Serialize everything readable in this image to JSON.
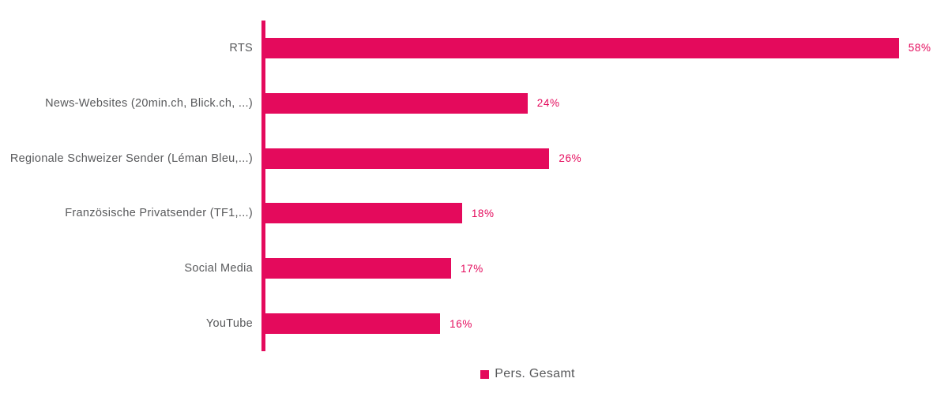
{
  "chart_data": {
    "type": "bar",
    "orientation": "horizontal",
    "title": "",
    "xlabel": "",
    "ylabel": "",
    "categories": [
      "RTS",
      "News-Websites (20min.ch, Blick.ch, ...)",
      "Regionale Schweizer Sender (Léman Bleu,...)",
      "Französische Privatsender (TF1,...)",
      "Social Media",
      "YouTube"
    ],
    "series": [
      {
        "name": "Pers. Gesamt",
        "values": [
          58,
          24,
          26,
          18,
          17,
          16
        ]
      }
    ],
    "value_suffix": "%",
    "xlim": [
      0,
      62.5
    ],
    "grid": false,
    "legend": {
      "label": "Pers. Gesamt",
      "position": "bottom",
      "swatch": "square"
    },
    "colors": {
      "bar": "#E40A5C",
      "axis": "#E40A5C",
      "category_label": "#58595B",
      "value_label": "#E40A5C",
      "legend_label": "#58595B"
    }
  }
}
